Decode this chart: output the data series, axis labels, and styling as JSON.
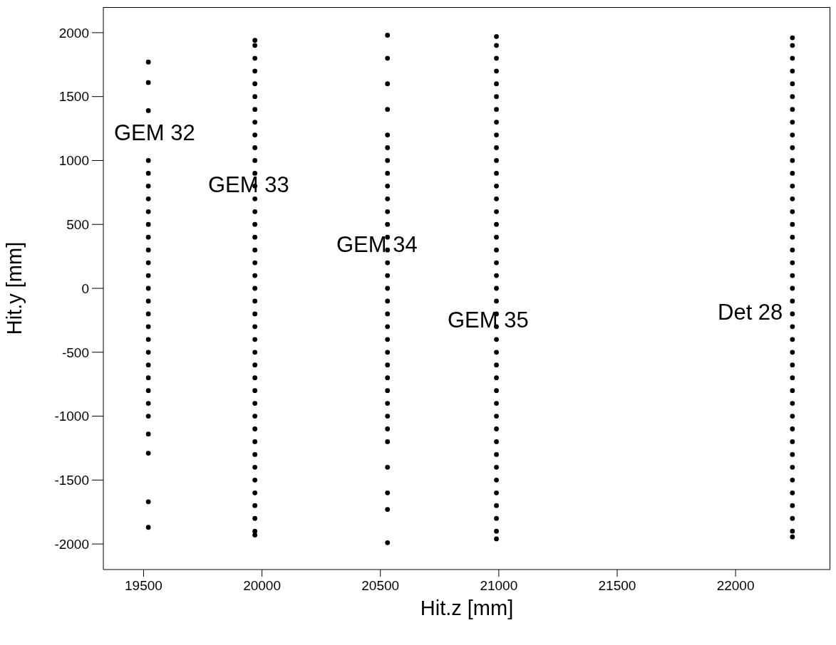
{
  "chart_data": {
    "type": "scatter",
    "xlabel": "Hit.z [mm]",
    "ylabel": "Hit.y [mm]",
    "xlim": [
      19330,
      22400
    ],
    "xticks": [
      19500,
      20000,
      20500,
      21000,
      21500,
      22000
    ],
    "ylim": [
      -2200,
      2200
    ],
    "yticks": [
      -2000,
      -1500,
      -1000,
      -500,
      0,
      500,
      1000,
      1500,
      2000
    ],
    "grid": false,
    "legend": false,
    "marker": "circle",
    "series": [
      {
        "color": "#000000",
        "x": [
          19520,
          19520,
          19520,
          19520,
          19520,
          19520,
          19520,
          19520,
          19520,
          19520,
          19520,
          19520,
          19520,
          19520,
          19520,
          19520,
          19520,
          19520,
          19520,
          19520,
          19520,
          19520,
          19520,
          19520,
          19520,
          19520,
          19520,
          19520
        ],
        "values": [
          1770,
          1610,
          1390,
          1000,
          900,
          800,
          700,
          600,
          500,
          400,
          300,
          200,
          100,
          0,
          -100,
          -200,
          -300,
          -400,
          -500,
          -600,
          -700,
          -800,
          -900,
          -1000,
          -1140,
          -1290,
          -1670,
          -1870
        ]
      },
      {
        "color": "#000000",
        "x": [
          19970,
          19970,
          19970,
          19970,
          19970,
          19970,
          19970,
          19970,
          19970,
          19970,
          19970,
          19970,
          19970,
          19970,
          19970,
          19970,
          19970,
          19970,
          19970,
          19970,
          19970,
          19970,
          19970,
          19970,
          19970,
          19970,
          19970,
          19970,
          19970,
          19970,
          19970,
          19970,
          19970,
          19970,
          19970,
          19970,
          19970,
          19970,
          19970,
          19970,
          19970
        ],
        "values": [
          1940,
          1900,
          1800,
          1700,
          1600,
          1500,
          1400,
          1300,
          1200,
          1100,
          1000,
          900,
          800,
          700,
          600,
          500,
          400,
          300,
          200,
          100,
          0,
          -100,
          -200,
          -300,
          -400,
          -500,
          -600,
          -700,
          -800,
          -900,
          -1000,
          -1100,
          -1200,
          -1300,
          -1400,
          -1500,
          -1600,
          -1700,
          -1800,
          -1900,
          -1930
        ]
      },
      {
        "color": "#000000",
        "x": [
          20530,
          20530,
          20530,
          20530,
          20530,
          20530,
          20530,
          20530,
          20530,
          20530,
          20530,
          20530,
          20530,
          20530,
          20530,
          20530,
          20530,
          20530,
          20530,
          20530,
          20530,
          20530,
          20530,
          20530,
          20530,
          20530,
          20530,
          20530,
          20530,
          20530,
          20530,
          20530
        ],
        "values": [
          1980,
          1800,
          1600,
          1400,
          1200,
          1100,
          1000,
          900,
          800,
          700,
          600,
          500,
          400,
          300,
          200,
          100,
          0,
          -100,
          -200,
          -300,
          -400,
          -500,
          -600,
          -700,
          -800,
          -900,
          -1000,
          -1100,
          -1200,
          -1400,
          -1600,
          -1730
        ]
      },
      {
        "color": "#000000",
        "x": [
          20530
        ],
        "values": [
          -1990
        ]
      },
      {
        "color": "#000000",
        "x": [
          20990,
          20990,
          20990,
          20990,
          20990,
          20990,
          20990,
          20990,
          20990,
          20990,
          20990,
          20990,
          20990,
          20990,
          20990,
          20990,
          20990,
          20990,
          20990,
          20990,
          20990,
          20990,
          20990,
          20990,
          20990,
          20990,
          20990,
          20990,
          20990,
          20990,
          20990,
          20990,
          20990,
          20990,
          20990,
          20990,
          20990,
          20990,
          20990,
          20990,
          20990
        ],
        "values": [
          1970,
          1900,
          1800,
          1700,
          1600,
          1500,
          1400,
          1300,
          1200,
          1100,
          1000,
          900,
          800,
          700,
          600,
          500,
          400,
          300,
          200,
          100,
          0,
          -100,
          -200,
          -300,
          -400,
          -500,
          -600,
          -700,
          -800,
          -900,
          -1000,
          -1100,
          -1200,
          -1300,
          -1400,
          -1500,
          -1600,
          -1700,
          -1800,
          -1900,
          -1960
        ]
      },
      {
        "color": "#000000",
        "x": [
          22240,
          22240,
          22240,
          22240,
          22240,
          22240,
          22240,
          22240,
          22240,
          22240,
          22240,
          22240,
          22240,
          22240,
          22240,
          22240,
          22240,
          22240,
          22240,
          22240,
          22240,
          22240,
          22240,
          22240,
          22240,
          22240,
          22240,
          22240,
          22240,
          22240,
          22240,
          22240,
          22240,
          22240,
          22240,
          22240,
          22240,
          22240,
          22240,
          22240,
          22240
        ],
        "values": [
          1960,
          1900,
          1800,
          1700,
          1600,
          1500,
          1400,
          1300,
          1200,
          1100,
          1000,
          900,
          800,
          700,
          600,
          500,
          400,
          300,
          200,
          100,
          0,
          -100,
          -200,
          -300,
          -400,
          -500,
          -600,
          -700,
          -800,
          -900,
          -1000,
          -1100,
          -1200,
          -1300,
          -1400,
          -1500,
          -1600,
          -1700,
          -1800,
          -1900,
          -1945
        ]
      }
    ],
    "annotations": [
      "GEM 32",
      "GEM 33",
      "GEM 34",
      "GEM 35",
      "Det 28"
    ]
  }
}
